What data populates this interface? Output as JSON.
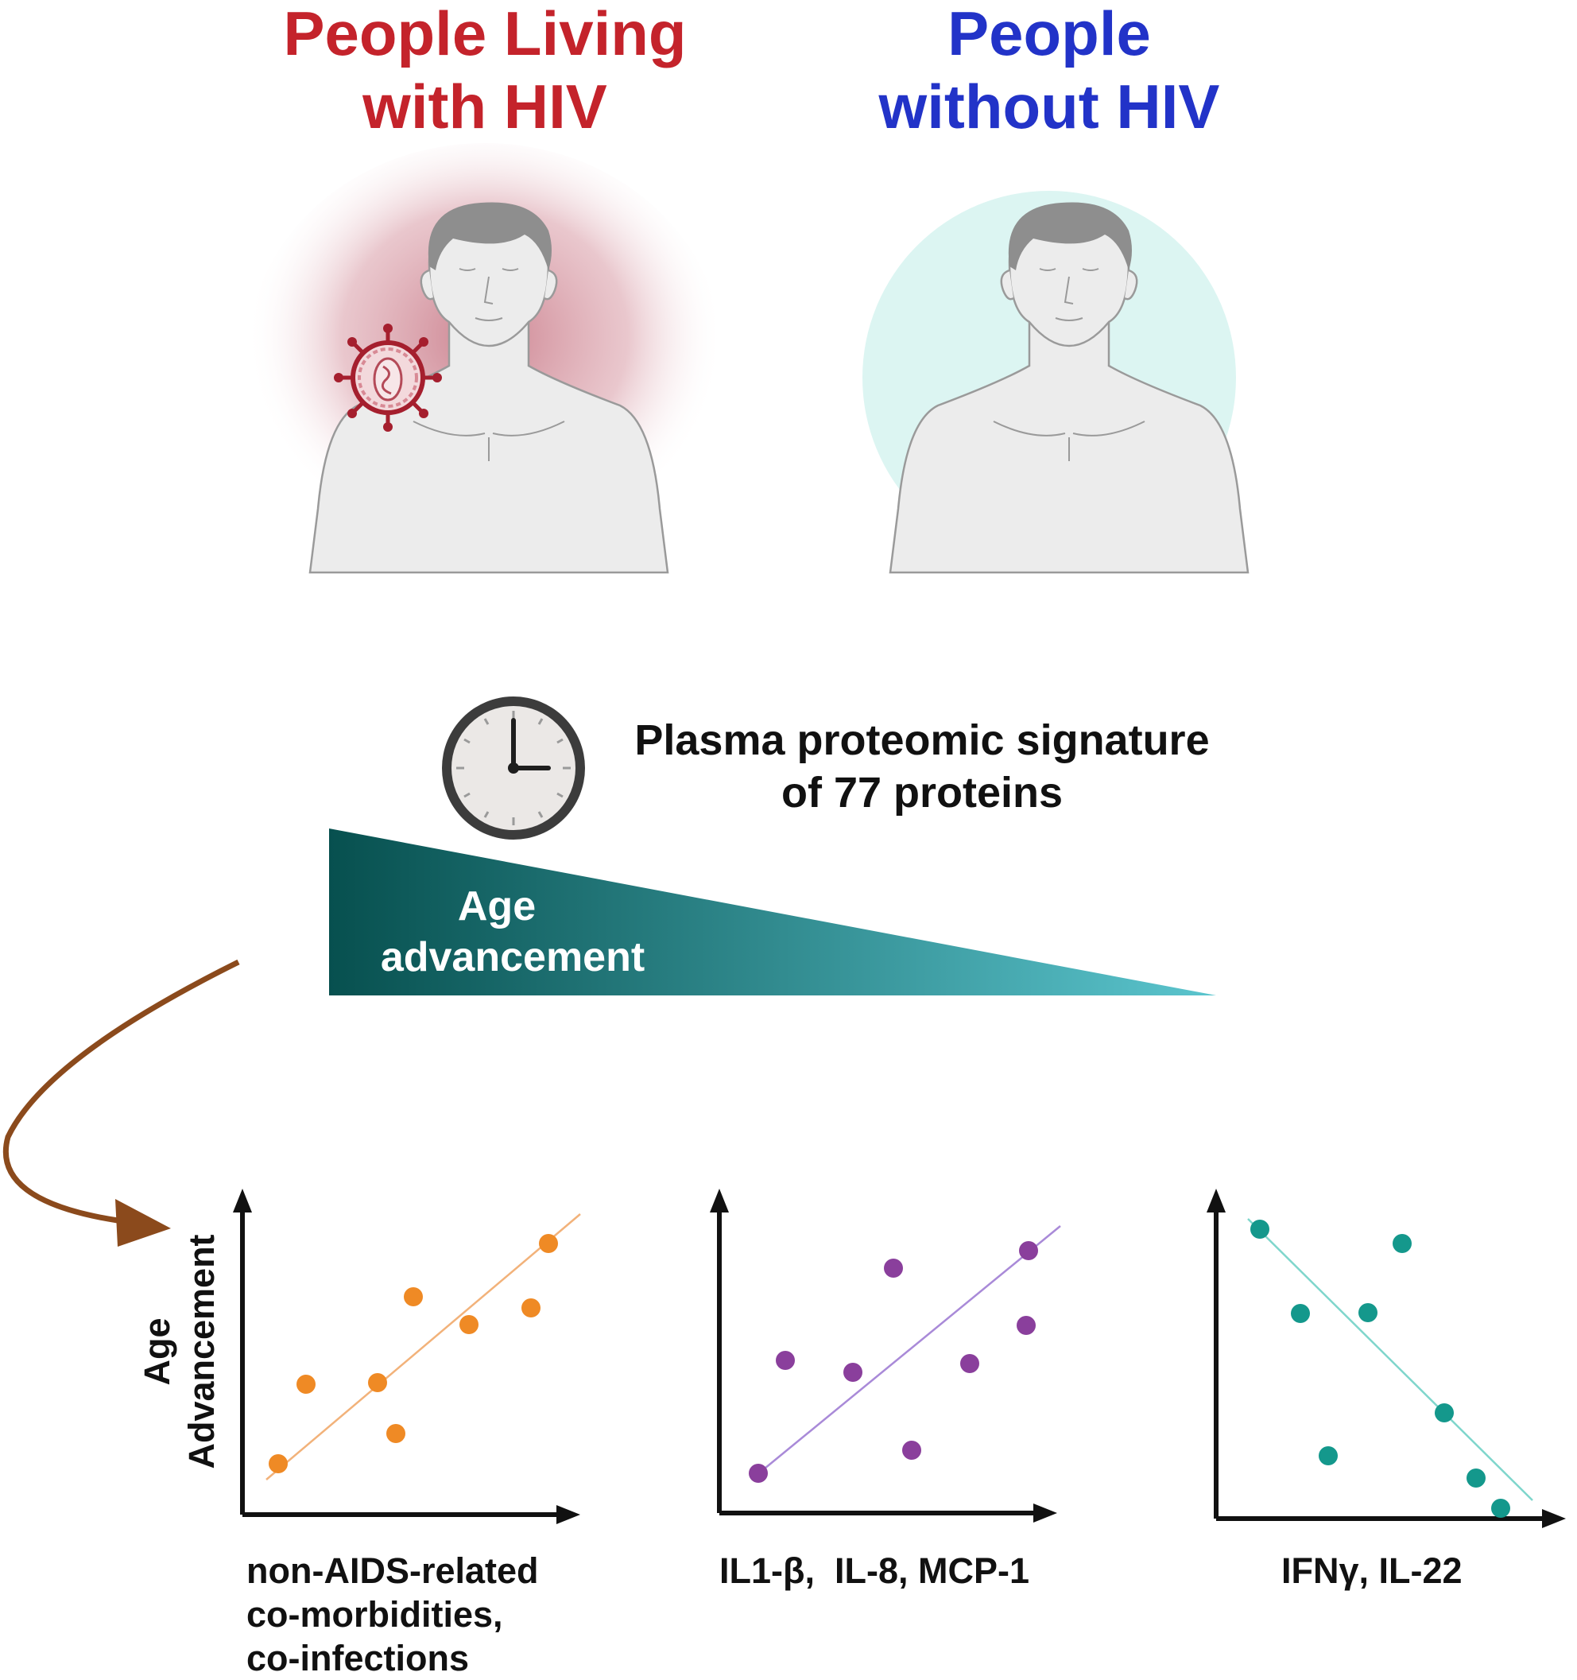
{
  "groups": [
    {
      "title_lines": [
        "People Living",
        "with HIV"
      ],
      "color": "#c4232b",
      "glow": "#c97b89",
      "has_virus": true
    },
    {
      "title_lines": [
        "People",
        "without HIV"
      ],
      "color": "#2233c8",
      "glow": "#d6f4f1",
      "has_virus": false
    }
  ],
  "clock": {
    "text_lines": [
      "Plasma proteomic signature",
      "of 77 proteins"
    ],
    "icon": "clock-icon"
  },
  "wedge": {
    "label_lines": [
      "Age",
      "advancement"
    ],
    "color_start": "#07504f",
    "color_end": "#5bc5ce"
  },
  "arrow": {
    "color": "#8b4a1c",
    "icon": "curved-arrow-icon"
  },
  "plots": [
    {
      "ylabel_lines": [
        "Age",
        "Advancement"
      ],
      "xlabel_lines": [
        "non-AIDS-related",
        "co-morbidities,",
        "co-infections"
      ],
      "color": "#ef8a25",
      "line_color": "#f2b27a",
      "trend": "positive"
    },
    {
      "ylabel_lines": [],
      "xlabel_lines": [
        "IL1-β,  IL-8, MCP-1"
      ],
      "color": "#8a3f9c",
      "line_color": "#a98ad8",
      "trend": "positive"
    },
    {
      "ylabel_lines": [],
      "xlabel_lines": [
        "IFNγ, IL-22"
      ],
      "color": "#14988c",
      "line_color": "#7fd6cc",
      "trend": "negative"
    }
  ]
}
